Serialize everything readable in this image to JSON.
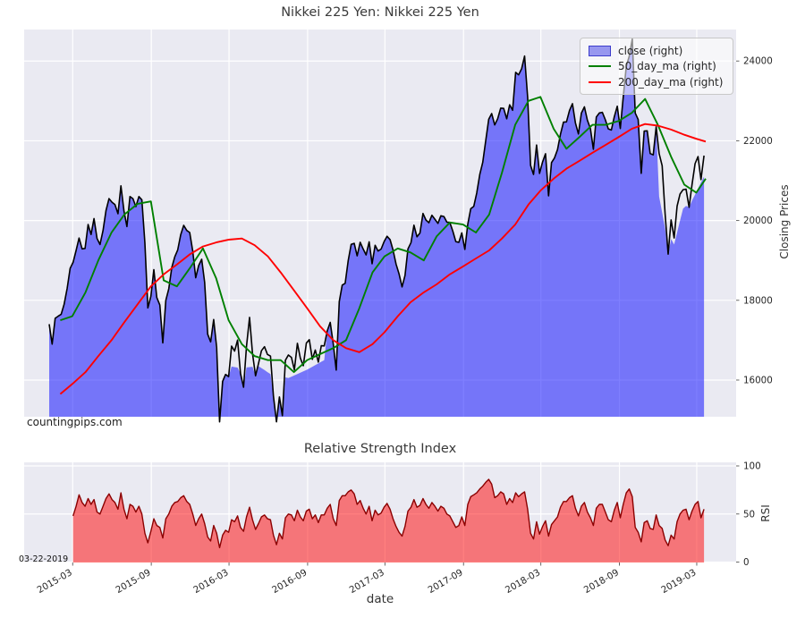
{
  "watermark": "countingpips.com",
  "colors": {
    "figure_bg": "#ffffff",
    "plot_bg": "#eaeaf2",
    "grid": "#ffffff",
    "close_line": "#000000",
    "close_fill": "#0000ff",
    "ma50": "#008000",
    "ma200": "#ff0000",
    "rsi_line": "#8b0000",
    "rsi_fill": "#ff0000",
    "tick_text": "#262626"
  },
  "chart_data": [
    {
      "type": "area",
      "title": "Nikkei 225 Yen: Nikkei 225 Yen",
      "xlabel": "date",
      "ylabel": "Closing Prices",
      "y_axis_side": "right",
      "grid": true,
      "legend_position": "upper right",
      "ylim": [
        15080,
        24790
      ],
      "yticks": [
        16000,
        18000,
        20000,
        22000,
        24000
      ],
      "x_range": [
        "2015-01-05",
        "2019-03-22"
      ],
      "xticks": [
        {
          "t": "2015-03-01",
          "label": "2015-03"
        },
        {
          "t": "2015-09-01",
          "label": "2015-09"
        },
        {
          "t": "2016-03-01",
          "label": "2016-03"
        },
        {
          "t": "2016-09-01",
          "label": "2016-09"
        },
        {
          "t": "2017-03-01",
          "label": "2017-03"
        },
        {
          "t": "2017-09-01",
          "label": "2017-09"
        },
        {
          "t": "2018-03-01",
          "label": "2018-03"
        },
        {
          "t": "2018-09-01",
          "label": "2018-09"
        },
        {
          "t": "2019-03-01",
          "label": "2019-03"
        }
      ],
      "legend": [
        {
          "label": "close (right)",
          "swatch": "patch",
          "color": "#5858e8"
        },
        {
          "label": "50_day_ma (right)",
          "swatch": "line",
          "color": "#008000"
        },
        {
          "label": "200_day_ma (right)",
          "swatch": "line",
          "color": "#ff0000"
        }
      ],
      "series": {
        "close": {
          "start": "2015-01-05",
          "step_days": 7,
          "values": [
            17400,
            16900,
            17550,
            17600,
            17650,
            17900,
            18300,
            18800,
            18950,
            19250,
            19560,
            19290,
            19300,
            19900,
            19650,
            20050,
            19550,
            19400,
            19750,
            20250,
            20550,
            20460,
            20400,
            20170,
            20870,
            20240,
            19850,
            20600,
            20550,
            20350,
            20600,
            20520,
            19435,
            17810,
            18100,
            18770,
            18070,
            17880,
            16930,
            18000,
            18290,
            18825,
            19090,
            19265,
            19650,
            19880,
            19750,
            19700,
            19230,
            18565,
            18870,
            19030,
            18450,
            17150,
            16958,
            17518,
            16819,
            14952,
            15967,
            16140,
            16085,
            16852,
            16725,
            17002,
            16164,
            15821,
            16848,
            17572,
            16666,
            16106,
            16412,
            16736,
            16835,
            16642,
            16601,
            15599,
            14952,
            15576,
            15106,
            16498,
            16627,
            16569,
            16254,
            16920,
            16546,
            16360,
            16926,
            17012,
            16519,
            16754,
            16450,
            16860,
            16856,
            17235,
            17446,
            16905,
            16251,
            17967,
            18381,
            18426,
            18996,
            19401,
            19428,
            19114,
            19454,
            19287,
            19138,
            19467,
            18918,
            19378,
            19235,
            19284,
            19469,
            19605,
            19522,
            19263,
            18909,
            18665,
            18336,
            18621,
            19289,
            19446,
            19884,
            19591,
            19686,
            20177,
            20013,
            19943,
            20133,
            20033,
            19929,
            20119,
            20100,
            19960,
            19952,
            19730,
            19470,
            19452,
            19691,
            19275,
            19910,
            20296,
            20356,
            20691,
            21155,
            21458,
            22009,
            22539,
            22681,
            22397,
            22551,
            22819,
            22811,
            22553,
            22902,
            22765,
            23715,
            23653,
            23808,
            24124,
            23098,
            21382,
            21154,
            21893,
            21181,
            21469,
            21676,
            20618,
            21454,
            21568,
            21779,
            22162,
            22468,
            22473,
            22758,
            22930,
            22451,
            22171,
            22694,
            22851,
            22517,
            22304,
            21788,
            22597,
            22698,
            22713,
            22525,
            22298,
            22270,
            22602,
            22865,
            22307,
            23094,
            23869,
            24120,
            24550,
            22695,
            22532,
            21185,
            22244,
            22250,
            21680,
            21647,
            22351,
            21679,
            21375,
            20166,
            19156,
            20015,
            19562,
            20360,
            20666,
            20774,
            20788,
            20333,
            20901,
            21426,
            21603,
            21026,
            21627
          ]
        },
        "fill_boundary_caps": {
          "note": "blue area boundary = min(close, interpolated cap)",
          "points": [
            [
              0,
              99999
            ],
            [
              53,
              99999
            ],
            [
              56,
              16500
            ],
            [
              60,
              16350
            ],
            [
              64,
              16300
            ],
            [
              70,
              16350
            ],
            [
              74,
              16150
            ],
            [
              80,
              16050
            ],
            [
              86,
              16250
            ],
            [
              92,
              16500
            ],
            [
              95,
              99999
            ],
            [
              202,
              99999
            ],
            [
              204,
              20600
            ],
            [
              206,
              19800
            ],
            [
              209,
              19400
            ],
            [
              212,
              20300
            ],
            [
              215,
              20500
            ],
            [
              219,
              21100
            ]
          ]
        },
        "ma50": {
          "cadence": "month-end",
          "start_month": "2015-01",
          "values": [
            17500,
            17600,
            18200,
            19000,
            19700,
            20150,
            20420,
            20480,
            18500,
            18350,
            18800,
            19300,
            18550,
            17500,
            16900,
            16600,
            16500,
            16500,
            16200,
            16500,
            16650,
            16800,
            17000,
            17800,
            18700,
            19100,
            19300,
            19200,
            19000,
            19600,
            19950,
            19900,
            19700,
            20150,
            21200,
            22400,
            23000,
            23100,
            22300,
            21800,
            22100,
            22400,
            22400,
            22500,
            22700,
            23050,
            22400,
            21600,
            20900,
            20700,
            21050
          ]
        },
        "ma200": {
          "cadence": "month-end",
          "start_month": "2015-01",
          "values": [
            15650,
            15900,
            16200,
            16600,
            17000,
            17450,
            17900,
            18350,
            18650,
            18900,
            19150,
            19350,
            19450,
            19520,
            19550,
            19380,
            19100,
            18700,
            18250,
            17800,
            17350,
            17000,
            16800,
            16700,
            16900,
            17200,
            17600,
            17950,
            18200,
            18400,
            18650,
            18850,
            19050,
            19250,
            19550,
            19900,
            20400,
            20750,
            21050,
            21300,
            21500,
            21700,
            21900,
            22100,
            22300,
            22420,
            22380,
            22280,
            22150,
            22050,
            21980
          ]
        }
      }
    },
    {
      "type": "area",
      "title": "Relative Strength Index",
      "ylabel": "RSI",
      "y_axis_side": "right",
      "grid": true,
      "annotation": "03-22-2019",
      "ylim": [
        0,
        104
      ],
      "yticks": [
        0,
        50,
        100
      ],
      "series": {
        "rsi": {
          "start": "2015-03-02",
          "step_days": 7,
          "values": [
            48,
            58,
            70,
            62,
            58,
            66,
            60,
            65,
            52,
            50,
            58,
            66,
            71,
            65,
            62,
            55,
            72,
            55,
            45,
            60,
            58,
            52,
            58,
            50,
            30,
            20,
            32,
            45,
            38,
            36,
            25,
            45,
            50,
            58,
            62,
            63,
            67,
            69,
            63,
            60,
            50,
            38,
            45,
            50,
            40,
            26,
            22,
            38,
            30,
            15,
            28,
            33,
            31,
            44,
            42,
            48,
            36,
            32,
            47,
            57,
            44,
            34,
            40,
            47,
            49,
            45,
            44,
            28,
            18,
            30,
            24,
            46,
            50,
            49,
            43,
            54,
            47,
            43,
            53,
            55,
            45,
            49,
            41,
            49,
            49,
            56,
            60,
            45,
            38,
            64,
            69,
            69,
            73,
            75,
            71,
            60,
            64,
            56,
            50,
            58,
            43,
            54,
            49,
            51,
            57,
            61,
            55,
            45,
            37,
            31,
            27,
            37,
            53,
            57,
            65,
            57,
            59,
            66,
            60,
            56,
            62,
            58,
            53,
            58,
            56,
            50,
            48,
            42,
            36,
            38,
            47,
            38,
            60,
            68,
            70,
            72,
            76,
            79,
            83,
            86,
            81,
            67,
            69,
            73,
            71,
            60,
            66,
            62,
            72,
            68,
            71,
            73,
            55,
            30,
            24,
            42,
            29,
            37,
            43,
            27,
            39,
            43,
            47,
            57,
            63,
            63,
            67,
            69,
            56,
            48,
            58,
            62,
            52,
            46,
            38,
            56,
            60,
            60,
            52,
            44,
            42,
            54,
            62,
            46,
            60,
            72,
            76,
            68,
            36,
            31,
            21,
            41,
            43,
            35,
            34,
            49,
            38,
            35,
            23,
            17,
            28,
            24,
            42,
            50,
            54,
            55,
            44,
            53,
            60,
            63,
            46,
            55
          ]
        }
      }
    }
  ]
}
